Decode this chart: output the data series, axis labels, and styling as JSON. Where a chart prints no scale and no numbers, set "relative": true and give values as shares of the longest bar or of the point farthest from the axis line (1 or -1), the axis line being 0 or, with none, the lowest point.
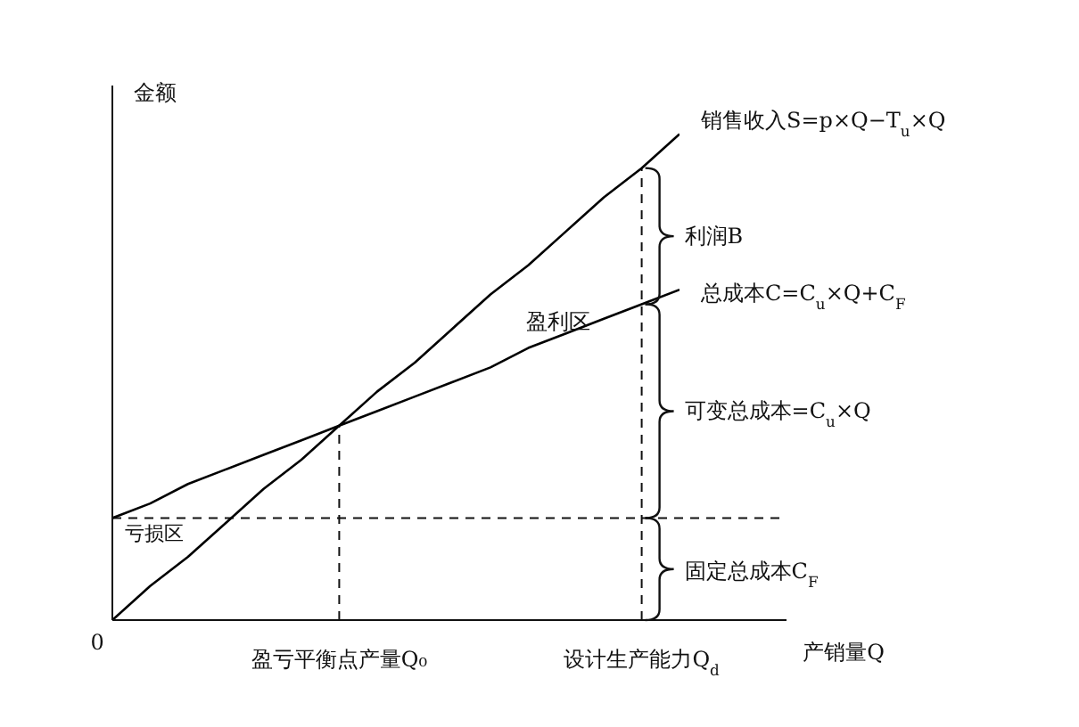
{
  "chart_data": {
    "type": "line",
    "relative": true,
    "xlabel": "产销量Q",
    "ylabel": "金额",
    "categories": [
      null,
      null,
      null,
      null,
      null,
      null,
      "盈亏平衡点产量Q₀",
      null,
      null,
      null,
      null,
      null,
      null,
      null,
      "设计生产能力Q$_{d}$",
      null
    ],
    "series": [
      {
        "name": "销售收入S=p×Q−T$_{u}$×Q",
        "color": "#000000",
        "values": [
          0,
          0.07,
          0.13,
          0.2,
          0.27,
          0.33,
          0.4,
          0.47,
          0.53,
          0.6,
          0.67,
          0.73,
          0.8,
          0.87,
          0.93,
          1
        ]
      },
      {
        "name": "总成本C=C$_{u}$×Q+C$_{F}$",
        "color": "#000000",
        "values": [
          0.21,
          0.24,
          0.28,
          0.31,
          0.34,
          0.37,
          0.4,
          0.43,
          0.46,
          0.49,
          0.52,
          0.56,
          0.59,
          0.62,
          0.65,
          0.68
        ]
      }
    ],
    "ref_lines": [
      {
        "axis": "y",
        "value": 0.21,
        "line_style": "dashed"
      },
      {
        "axis": "x",
        "value": "盈亏平衡点产量Q₀",
        "line_style": "dashed"
      },
      {
        "axis": "x",
        "value": "设计生产能力Q$_{d}$",
        "line_style": "dashed"
      }
    ],
    "annotations": [
      {
        "text": "利润B",
        "x": "设计生产能力Q$_{d}$",
        "y": 0.79
      },
      {
        "text": "可变总成本=C$_{u}$×Q",
        "x": "设计生产能力Q$_{d}$",
        "y": 0.43
      },
      {
        "text": "固定总成本C$_{F}$",
        "x": "设计生产能力Q$_{d}$",
        "y": 0.1
      },
      "盈利区",
      "亏损区",
      "0"
    ],
    "legend": false,
    "grid": false,
    "marker": "none",
    "line_style": "solid"
  }
}
